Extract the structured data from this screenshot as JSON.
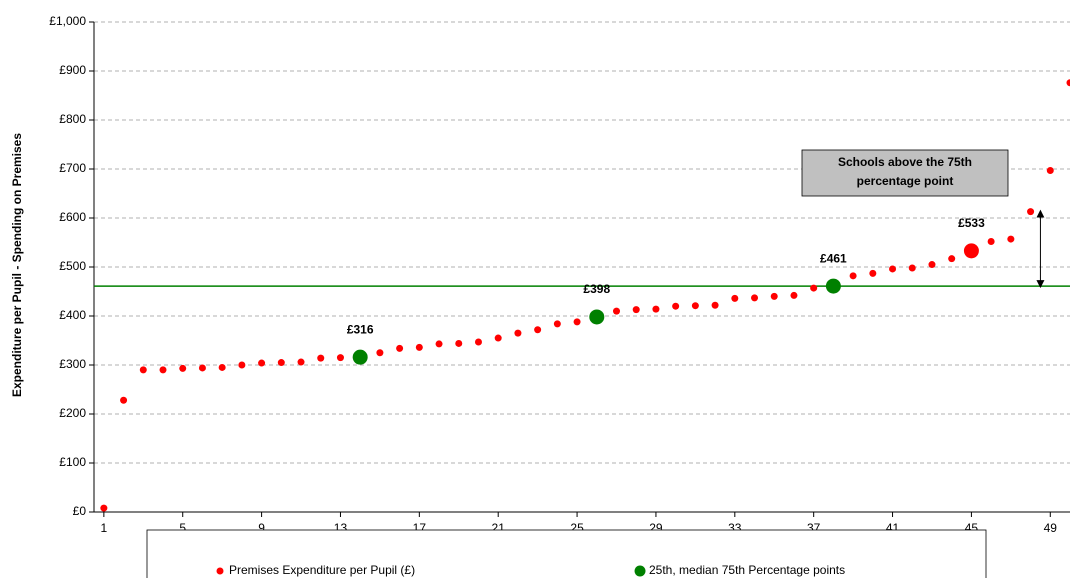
{
  "chart_data": {
    "type": "scatter",
    "y_label": "Expenditure per Pupil - Spending on Premises",
    "xlim": [
      0.5,
      50
    ],
    "ylim": [
      0,
      1000
    ],
    "xticks": [
      1,
      5,
      9,
      13,
      17,
      21,
      25,
      29,
      33,
      37,
      41,
      45,
      49
    ],
    "yticks": [
      {
        "value": 0,
        "label": "£0"
      },
      {
        "value": 100,
        "label": "£100"
      },
      {
        "value": 200,
        "label": "£200"
      },
      {
        "value": 300,
        "label": "£300"
      },
      {
        "value": 400,
        "label": "£400"
      },
      {
        "value": 500,
        "label": "£500"
      },
      {
        "value": 600,
        "label": "£600"
      },
      {
        "value": 700,
        "label": "£700"
      },
      {
        "value": 800,
        "label": "£800"
      },
      {
        "value": 900,
        "label": "£900"
      },
      {
        "value": 1000,
        "label": "£1,000"
      }
    ],
    "grid": true,
    "series": [
      {
        "name": "Premises Expenditure per Pupil (£)",
        "color": "#ff0000",
        "x": [
          1,
          2,
          3,
          4,
          5,
          6,
          7,
          8,
          9,
          10,
          11,
          12,
          13,
          14,
          15,
          16,
          17,
          18,
          19,
          20,
          21,
          22,
          23,
          24,
          25,
          26,
          27,
          28,
          29,
          30,
          31,
          32,
          33,
          34,
          35,
          36,
          37,
          38,
          39,
          40,
          41,
          42,
          43,
          44,
          45,
          46,
          47,
          48,
          49,
          50
        ],
        "values": [
          8,
          228,
          290,
          290,
          293,
          294,
          295,
          300,
          304,
          305,
          306,
          314,
          315,
          316,
          325,
          334,
          336,
          343,
          344,
          347,
          355,
          365,
          372,
          384,
          388,
          398,
          410,
          413,
          414,
          420,
          421,
          422,
          436,
          437,
          440,
          442,
          457,
          461,
          482,
          487,
          496,
          498,
          505,
          517,
          533,
          552,
          557,
          613,
          697,
          876
        ]
      },
      {
        "name": "25th, median 75th Percentage points",
        "color": "#008000",
        "x": [
          14,
          26,
          38
        ],
        "values": [
          316,
          398,
          461
        ],
        "value_labels": [
          "£316",
          "£398",
          "£461"
        ]
      }
    ],
    "highlight": {
      "x": 45,
      "value": 533,
      "value_label": "£533",
      "color": "#ff0000"
    },
    "reference_line": {
      "value": 461,
      "color": "#008000"
    },
    "annotation": {
      "text": "Schools above the 75th percentage point",
      "x": 48.5,
      "from": 461,
      "to": 613
    }
  }
}
